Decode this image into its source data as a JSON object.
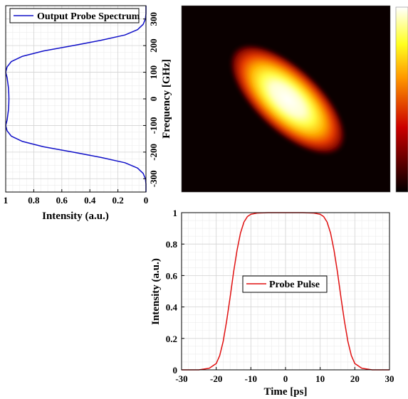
{
  "chart_data": [
    {
      "id": "spectrum",
      "type": "line",
      "title": "",
      "xlabel": "Intensity (a.u.)",
      "ylabel": "Frequency [GHz]",
      "xlim": [
        1,
        0
      ],
      "ylim": [
        -350,
        350
      ],
      "x_reversed": true,
      "xticks": [
        "1",
        "0.8",
        "0.6",
        "0.4",
        "0.2",
        "0"
      ],
      "yticks": [
        "-300",
        "-200",
        "-100",
        "0",
        "100",
        "200",
        "300"
      ],
      "grid": true,
      "legend_position": "top",
      "series": [
        {
          "name": "Output Probe Spectrum",
          "color": "#1010c8",
          "points": [
            [
              0.0,
              -350
            ],
            [
              0.0,
              -320
            ],
            [
              0.004,
              -300
            ],
            [
              0.02,
              -280
            ],
            [
              0.06,
              -260
            ],
            [
              0.15,
              -240
            ],
            [
              0.32,
              -220
            ],
            [
              0.52,
              -200
            ],
            [
              0.73,
              -180
            ],
            [
              0.88,
              -160
            ],
            [
              0.96,
              -140
            ],
            [
              0.99,
              -120
            ],
            [
              1.0,
              -100
            ],
            [
              0.99,
              -80
            ],
            [
              0.985,
              -60
            ],
            [
              0.98,
              -40
            ],
            [
              0.978,
              -20
            ],
            [
              0.977,
              0
            ],
            [
              0.978,
              20
            ],
            [
              0.98,
              40
            ],
            [
              0.985,
              60
            ],
            [
              0.99,
              80
            ],
            [
              1.0,
              100
            ],
            [
              0.99,
              120
            ],
            [
              0.96,
              140
            ],
            [
              0.88,
              160
            ],
            [
              0.73,
              180
            ],
            [
              0.52,
              200
            ],
            [
              0.32,
              220
            ],
            [
              0.15,
              240
            ],
            [
              0.06,
              260
            ],
            [
              0.02,
              280
            ],
            [
              0.004,
              300
            ],
            [
              0.0,
              320
            ],
            [
              0.0,
              350
            ]
          ]
        }
      ]
    },
    {
      "id": "spectrogram",
      "type": "heatmap",
      "title": "",
      "xlim": [
        -30,
        30
      ],
      "ylim": [
        -350,
        350
      ],
      "colormap": "hot",
      "colorbar": true,
      "description_values": {
        "ridge": [
          [
            -13,
            120
          ],
          [
            13,
            -120
          ]
        ],
        "sigma_t": 7.5,
        "sigma_f": 55
      }
    },
    {
      "id": "pulse",
      "type": "line",
      "title": "",
      "xlabel": "Time [ps]",
      "ylabel": "Intensity (a.u.)",
      "xlim": [
        -30,
        30
      ],
      "ylim": [
        0,
        1
      ],
      "xticks": [
        "-30",
        "-20",
        "-10",
        "0",
        "10",
        "20",
        "30"
      ],
      "yticks": [
        "0",
        "0.2",
        "0.4",
        "0.6",
        "0.8",
        "1"
      ],
      "grid": true,
      "legend_position": "center",
      "series": [
        {
          "name": "Probe Pulse",
          "color": "#e01010",
          "points": [
            [
              -30,
              0
            ],
            [
              -25,
              0.0
            ],
            [
              -22,
              0.01
            ],
            [
              -20,
              0.04
            ],
            [
              -19,
              0.09
            ],
            [
              -18,
              0.18
            ],
            [
              -17,
              0.31
            ],
            [
              -16,
              0.46
            ],
            [
              -15,
              0.62
            ],
            [
              -14,
              0.76
            ],
            [
              -13,
              0.87
            ],
            [
              -12,
              0.94
            ],
            [
              -11,
              0.975
            ],
            [
              -10,
              0.99
            ],
            [
              -8,
              0.998
            ],
            [
              -5,
              1.0
            ],
            [
              0,
              1.0
            ],
            [
              5,
              1.0
            ],
            [
              8,
              0.998
            ],
            [
              10,
              0.99
            ],
            [
              11,
              0.975
            ],
            [
              12,
              0.94
            ],
            [
              13,
              0.87
            ],
            [
              14,
              0.76
            ],
            [
              15,
              0.62
            ],
            [
              16,
              0.46
            ],
            [
              17,
              0.31
            ],
            [
              18,
              0.18
            ],
            [
              19,
              0.09
            ],
            [
              20,
              0.04
            ],
            [
              22,
              0.01
            ],
            [
              25,
              0.0
            ],
            [
              30,
              0
            ]
          ]
        }
      ]
    }
  ],
  "colors": {
    "grid_minor": "#ececec",
    "grid_major": "#d4d4d4",
    "axis": "#000000"
  }
}
